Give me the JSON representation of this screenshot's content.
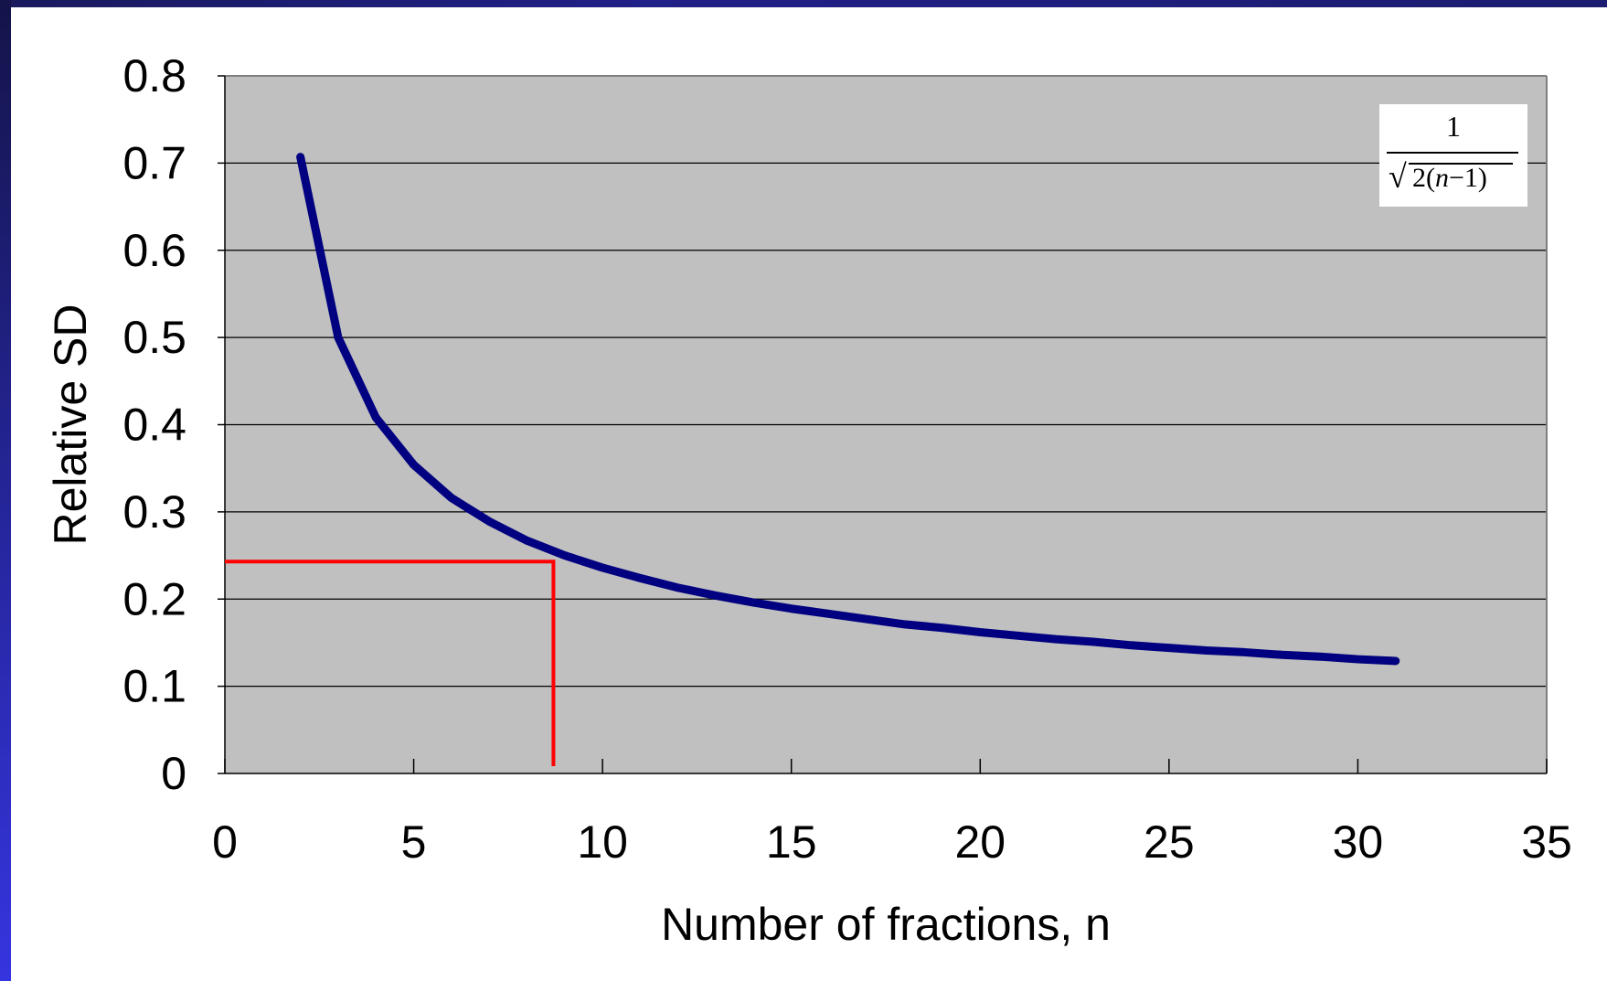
{
  "chart_data": {
    "type": "line",
    "xlabel": "Number of fractions, n",
    "ylabel": "Relative SD",
    "xlim": [
      0,
      35
    ],
    "ylim": [
      0,
      0.8
    ],
    "x_ticks": [
      "0",
      "5",
      "10",
      "15",
      "20",
      "25",
      "30",
      "35"
    ],
    "y_ticks": [
      "0",
      "0.1",
      "0.2",
      "0.3",
      "0.4",
      "0.5",
      "0.6",
      "0.7",
      "0.8"
    ],
    "grid": "horizontal",
    "plot_background": "#c0c0c0",
    "annotation": {
      "formula_numerator": "1",
      "formula_denominator": "2(n−1)",
      "formula_variable": "n"
    },
    "series": [
      {
        "color": "#000080",
        "x": [
          2,
          3,
          4,
          5,
          6,
          7,
          8,
          9,
          10,
          11,
          12,
          13,
          14,
          15,
          16,
          17,
          18,
          19,
          20,
          21,
          22,
          23,
          24,
          25,
          26,
          27,
          28,
          29,
          30,
          31
        ],
        "values": [
          0.707,
          0.5,
          0.408,
          0.354,
          0.316,
          0.289,
          0.267,
          0.25,
          0.236,
          0.224,
          0.213,
          0.204,
          0.196,
          0.189,
          0.183,
          0.177,
          0.171,
          0.167,
          0.162,
          0.158,
          0.154,
          0.151,
          0.147,
          0.144,
          0.141,
          0.139,
          0.136,
          0.134,
          0.131,
          0.129
        ]
      }
    ],
    "reference_lines": [
      {
        "color": "#ff0000",
        "x": 8.7,
        "y": 0.243
      }
    ]
  }
}
